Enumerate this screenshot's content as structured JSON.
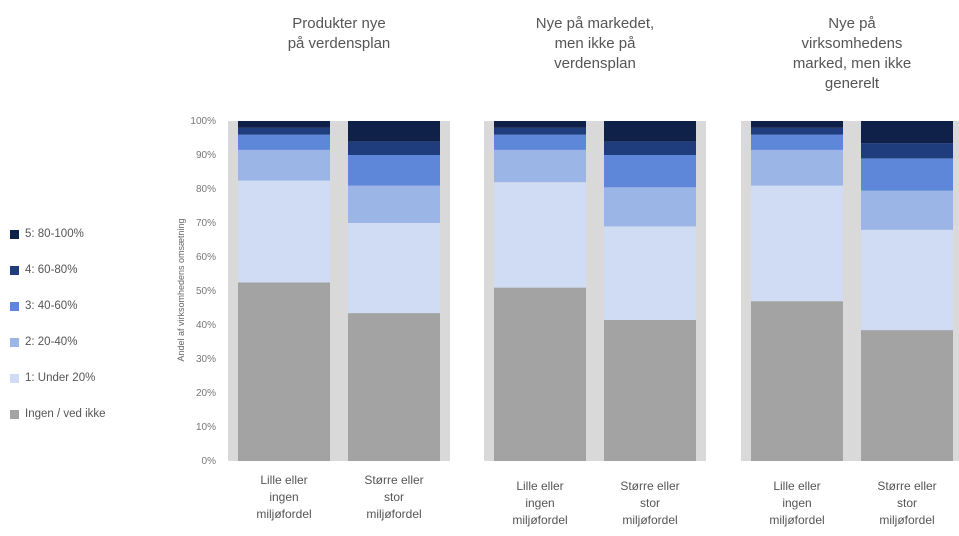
{
  "chart_data": {
    "type": "bar",
    "stacked": true,
    "ylabel": "Andel af virksomhedens omsætning",
    "ylim": [
      0,
      100
    ],
    "yticks": [
      "0%",
      "10%",
      "20%",
      "30%",
      "40%",
      "50%",
      "60%",
      "70%",
      "80%",
      "90%",
      "100%"
    ],
    "legend_position": "left",
    "series_names": [
      "Ingen / ved ikke",
      "1: Under 20%",
      "2: 20-40%",
      "3: 40-60%",
      "4: 60-80%",
      "5: 80-100%"
    ],
    "colors": [
      "#a3a3a3",
      "#cfdcf3",
      "#9bb5e6",
      "#5f87d9",
      "#1f3c7c",
      "#0f2148"
    ],
    "panels": [
      {
        "title": "Produkter nye\npå verdensplan",
        "categories": [
          "Lille eller\ningen\nmiljøfordel",
          "Større eller\nstor\nmiljøfordel"
        ],
        "values": [
          [
            52.5,
            30,
            9,
            4.5,
            2,
            2
          ],
          [
            43.5,
            26.5,
            11,
            9,
            4,
            6
          ]
        ]
      },
      {
        "title": "Nye på markedet,\nmen ikke på\nverdensplan",
        "categories": [
          "Lille eller\ningen\nmiljøfordel",
          "Større eller\nstor\nmiljøfordel"
        ],
        "values": [
          [
            51,
            31,
            9.5,
            4.5,
            2,
            2
          ],
          [
            41.5,
            27.5,
            11.5,
            9.5,
            4,
            6
          ]
        ]
      },
      {
        "title": "Nye på\nvirksomhedens\nmarked, men ikke\ngenerelt",
        "categories": [
          "Lille eller\ningen\nmiljøfordel",
          "Større eller\nstor\nmiljøfordel"
        ],
        "values": [
          [
            47,
            34,
            10.5,
            4.5,
            2,
            2
          ],
          [
            38.5,
            29.5,
            11.5,
            9.5,
            4.5,
            6.5
          ]
        ]
      }
    ]
  }
}
